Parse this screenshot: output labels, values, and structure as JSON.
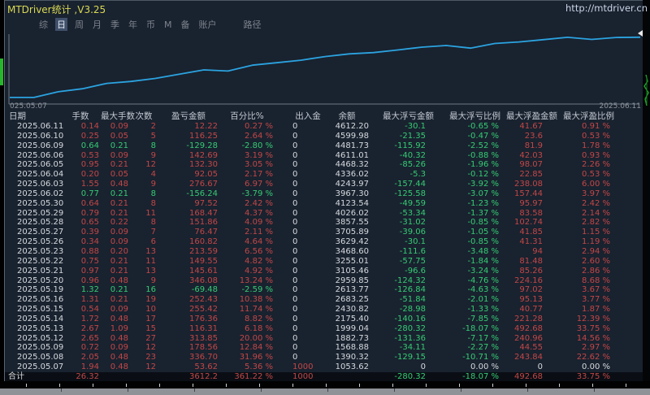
{
  "window": {
    "title": "MTDriver统计 ,V3.25",
    "url": "http://mtdriver.cn"
  },
  "menu": {
    "items": [
      {
        "label": "综",
        "name": "summary",
        "selected": false
      },
      {
        "label": "日",
        "name": "day",
        "selected": true
      },
      {
        "label": "周",
        "name": "week",
        "selected": false
      },
      {
        "label": "月",
        "name": "month",
        "selected": false
      },
      {
        "label": "季",
        "name": "quarter",
        "selected": false
      },
      {
        "label": "年",
        "name": "year",
        "selected": false
      },
      {
        "label": "币",
        "name": "symbol",
        "selected": false
      },
      {
        "label": "M",
        "name": "magic",
        "selected": false
      },
      {
        "label": "备",
        "name": "note",
        "selected": false
      },
      {
        "label": "账户",
        "name": "account",
        "selected": false
      }
    ],
    "path_label": "路径"
  },
  "colors": {
    "panel_bg": "#19222f",
    "up_red": "#c24747",
    "down_green": "#35cc74",
    "text": "#d6dade",
    "header": "#c3cad3",
    "muted": "#8d949c",
    "accent_line": "#2ba3e0",
    "title_yellow": "#d9d952",
    "menu": "#7d848e",
    "selected_bg": "#40506a"
  },
  "chart_data": {
    "type": "line",
    "title": "",
    "xlabel": "",
    "ylabel": "",
    "x_start_label": "025.05.07",
    "x_end_label": "2025.06.11",
    "line_color": "#2ba3e0",
    "ylim": [
      1000,
      4700
    ],
    "x": [
      "2025.05.07",
      "2025.05.08",
      "2025.05.09",
      "2025.05.12",
      "2025.05.13",
      "2025.05.14",
      "2025.05.15",
      "2025.05.16",
      "2025.05.19",
      "2025.05.20",
      "2025.05.21",
      "2025.05.22",
      "2025.05.23",
      "2025.05.26",
      "2025.05.27",
      "2025.05.28",
      "2025.05.29",
      "2025.05.30",
      "2025.06.02",
      "2025.06.03",
      "2025.06.04",
      "2025.06.05",
      "2025.06.06",
      "2025.06.09",
      "2025.06.10",
      "2025.06.11"
    ],
    "values": [
      1053.62,
      1390.32,
      1568.88,
      1882.73,
      1999.04,
      2175.4,
      2430.82,
      2683.25,
      2613.77,
      2959.85,
      3105.46,
      3255.01,
      3468.6,
      3629.42,
      3705.89,
      3857.55,
      4026.02,
      4123.54,
      3967.3,
      4243.97,
      4336.02,
      4468.32,
      4611.01,
      4481.73,
      4599.98,
      4612.2
    ]
  },
  "table": {
    "columns": [
      "日期",
      "手数",
      "最大手数",
      "次数",
      "盈亏金额",
      "百分比%",
      "出入金",
      "余额",
      "最大浮亏金额",
      "最大浮亏比例",
      "最大浮盈金额",
      "最大浮盈比例"
    ],
    "rows": [
      {
        "date": "2025.06.11",
        "lots": "0.14",
        "max_lots": "0.09",
        "count": "2",
        "pl": "12.22",
        "pl_pct": "0.27 %",
        "in_out": "0",
        "balance": "4612.20",
        "max_float_loss": "-30.1",
        "max_float_loss_pct": "-0.65 %",
        "max_float_profit": "41.67",
        "max_float_profit_pct": "0.91 %",
        "trend": "up"
      },
      {
        "date": "2025.06.10",
        "lots": "0.25",
        "max_lots": "0.05",
        "count": "5",
        "pl": "116.25",
        "pl_pct": "2.64 %",
        "in_out": "0",
        "balance": "4599.98",
        "max_float_loss": "-21.35",
        "max_float_loss_pct": "-0.47 %",
        "max_float_profit": "23.6",
        "max_float_profit_pct": "0.53 %",
        "trend": "up"
      },
      {
        "date": "2025.06.09",
        "lots": "0.64",
        "max_lots": "0.21",
        "count": "8",
        "pl": "-129.28",
        "pl_pct": "-2.80 %",
        "in_out": "0",
        "balance": "4481.73",
        "max_float_loss": "-115.92",
        "max_float_loss_pct": "-2.52 %",
        "max_float_profit": "81.9",
        "max_float_profit_pct": "1.78 %",
        "trend": "down"
      },
      {
        "date": "2025.06.06",
        "lots": "0.53",
        "max_lots": "0.09",
        "count": "9",
        "pl": "142.69",
        "pl_pct": "3.19 %",
        "in_out": "0",
        "balance": "4611.01",
        "max_float_loss": "-40.32",
        "max_float_loss_pct": "-0.88 %",
        "max_float_profit": "42.03",
        "max_float_profit_pct": "0.93 %",
        "trend": "up"
      },
      {
        "date": "2025.06.05",
        "lots": "0.95",
        "max_lots": "0.21",
        "count": "12",
        "pl": "132.30",
        "pl_pct": "3.05 %",
        "in_out": "0",
        "balance": "4468.32",
        "max_float_loss": "-85.26",
        "max_float_loss_pct": "-1.96 %",
        "max_float_profit": "98.07",
        "max_float_profit_pct": "2.26 %",
        "trend": "up"
      },
      {
        "date": "2025.06.04",
        "lots": "0.20",
        "max_lots": "0.05",
        "count": "4",
        "pl": "92.05",
        "pl_pct": "2.17 %",
        "in_out": "0",
        "balance": "4336.02",
        "max_float_loss": "-5.3",
        "max_float_loss_pct": "-0.12 %",
        "max_float_profit": "22.85",
        "max_float_profit_pct": "0.53 %",
        "trend": "up"
      },
      {
        "date": "2025.06.03",
        "lots": "1.55",
        "max_lots": "0.48",
        "count": "9",
        "pl": "276.67",
        "pl_pct": "6.97 %",
        "in_out": "0",
        "balance": "4243.97",
        "max_float_loss": "-157.44",
        "max_float_loss_pct": "-3.92 %",
        "max_float_profit": "238.08",
        "max_float_profit_pct": "6.00 %",
        "trend": "up"
      },
      {
        "date": "2025.06.02",
        "lots": "0.77",
        "max_lots": "0.21",
        "count": "8",
        "pl": "-156.24",
        "pl_pct": "-3.79 %",
        "in_out": "0",
        "balance": "3967.30",
        "max_float_loss": "-125.58",
        "max_float_loss_pct": "-3.07 %",
        "max_float_profit": "157.44",
        "max_float_profit_pct": "3.97 %",
        "trend": "down"
      },
      {
        "date": "2025.05.30",
        "lots": "0.64",
        "max_lots": "0.21",
        "count": "8",
        "pl": "97.52",
        "pl_pct": "2.42 %",
        "in_out": "0",
        "balance": "4123.54",
        "max_float_loss": "-49.59",
        "max_float_loss_pct": "-1.23 %",
        "max_float_profit": "95.97",
        "max_float_profit_pct": "2.42 %",
        "trend": "up"
      },
      {
        "date": "2025.05.29",
        "lots": "0.79",
        "max_lots": "0.21",
        "count": "11",
        "pl": "168.47",
        "pl_pct": "4.37 %",
        "in_out": "0",
        "balance": "4026.02",
        "max_float_loss": "-53.34",
        "max_float_loss_pct": "-1.37 %",
        "max_float_profit": "83.58",
        "max_float_profit_pct": "2.14 %",
        "trend": "up"
      },
      {
        "date": "2025.05.28",
        "lots": "0.65",
        "max_lots": "0.22",
        "count": "8",
        "pl": "151.86",
        "pl_pct": "4.09 %",
        "in_out": "0",
        "balance": "3857.55",
        "max_float_loss": "-31.02",
        "max_float_loss_pct": "-0.85 %",
        "max_float_profit": "102.74",
        "max_float_profit_pct": "2.82 %",
        "trend": "up"
      },
      {
        "date": "2025.05.27",
        "lots": "0.39",
        "max_lots": "0.09",
        "count": "7",
        "pl": "76.47",
        "pl_pct": "2.11 %",
        "in_out": "0",
        "balance": "3705.89",
        "max_float_loss": "-39.06",
        "max_float_loss_pct": "-1.05 %",
        "max_float_profit": "41.85",
        "max_float_profit_pct": "1.15 %",
        "trend": "up"
      },
      {
        "date": "2025.05.26",
        "lots": "0.34",
        "max_lots": "0.09",
        "count": "6",
        "pl": "160.82",
        "pl_pct": "4.64 %",
        "in_out": "0",
        "balance": "3629.42",
        "max_float_loss": "-30.1",
        "max_float_loss_pct": "-0.85 %",
        "max_float_profit": "41.31",
        "max_float_profit_pct": "1.19 %",
        "trend": "up"
      },
      {
        "date": "2025.05.23",
        "lots": "0.88",
        "max_lots": "0.20",
        "count": "13",
        "pl": "213.59",
        "pl_pct": "6.56 %",
        "in_out": "0",
        "balance": "3468.60",
        "max_float_loss": "-111.6",
        "max_float_loss_pct": "-3.48 %",
        "max_float_profit": "94",
        "max_float_profit_pct": "2.94 %",
        "trend": "up"
      },
      {
        "date": "2025.05.22",
        "lots": "0.75",
        "max_lots": "0.21",
        "count": "11",
        "pl": "149.55",
        "pl_pct": "4.82 %",
        "in_out": "0",
        "balance": "3255.01",
        "max_float_loss": "-57.75",
        "max_float_loss_pct": "-1.84 %",
        "max_float_profit": "81.48",
        "max_float_profit_pct": "2.60 %",
        "trend": "up"
      },
      {
        "date": "2025.05.21",
        "lots": "0.97",
        "max_lots": "0.21",
        "count": "13",
        "pl": "145.61",
        "pl_pct": "4.92 %",
        "in_out": "0",
        "balance": "3105.46",
        "max_float_loss": "-96.6",
        "max_float_loss_pct": "-3.24 %",
        "max_float_profit": "85.26",
        "max_float_profit_pct": "2.86 %",
        "trend": "up"
      },
      {
        "date": "2025.05.20",
        "lots": "0.96",
        "max_lots": "0.48",
        "count": "9",
        "pl": "346.08",
        "pl_pct": "13.24 %",
        "in_out": "0",
        "balance": "2959.85",
        "max_float_loss": "-124.32",
        "max_float_loss_pct": "-4.76 %",
        "max_float_profit": "224.16",
        "max_float_profit_pct": "8.68 %",
        "trend": "up"
      },
      {
        "date": "2025.05.19",
        "lots": "1.32",
        "max_lots": "0.21",
        "count": "16",
        "pl": "-69.48",
        "pl_pct": "-2.59 %",
        "in_out": "0",
        "balance": "2613.77",
        "max_float_loss": "-126.84",
        "max_float_loss_pct": "-4.63 %",
        "max_float_profit": "97.02",
        "max_float_profit_pct": "3.67 %",
        "trend": "down"
      },
      {
        "date": "2025.05.16",
        "lots": "1.31",
        "max_lots": "0.21",
        "count": "19",
        "pl": "252.43",
        "pl_pct": "10.38 %",
        "in_out": "0",
        "balance": "2683.25",
        "max_float_loss": "-51.84",
        "max_float_loss_pct": "-2.01 %",
        "max_float_profit": "95.13",
        "max_float_profit_pct": "3.77 %",
        "trend": "up"
      },
      {
        "date": "2025.05.15",
        "lots": "0.54",
        "max_lots": "0.09",
        "count": "10",
        "pl": "255.42",
        "pl_pct": "11.74 %",
        "in_out": "0",
        "balance": "2430.82",
        "max_float_loss": "-28.98",
        "max_float_loss_pct": "-1.33 %",
        "max_float_profit": "40.77",
        "max_float_profit_pct": "1.87 %",
        "trend": "up"
      },
      {
        "date": "2025.05.14",
        "lots": "1.72",
        "max_lots": "0.48",
        "count": "17",
        "pl": "176.36",
        "pl_pct": "8.82 %",
        "in_out": "0",
        "balance": "2175.40",
        "max_float_loss": "-140.16",
        "max_float_loss_pct": "-7.85 %",
        "max_float_profit": "221.28",
        "max_float_profit_pct": "12.39 %",
        "trend": "up"
      },
      {
        "date": "2025.05.13",
        "lots": "2.67",
        "max_lots": "1.09",
        "count": "15",
        "pl": "116.31",
        "pl_pct": "6.18 %",
        "in_out": "0",
        "balance": "1999.04",
        "max_float_loss": "-280.32",
        "max_float_loss_pct": "-18.07 %",
        "max_float_profit": "492.68",
        "max_float_profit_pct": "33.75 %",
        "trend": "up"
      },
      {
        "date": "2025.05.12",
        "lots": "2.65",
        "max_lots": "0.48",
        "count": "27",
        "pl": "313.85",
        "pl_pct": "20.00 %",
        "in_out": "0",
        "balance": "1882.73",
        "max_float_loss": "-131.36",
        "max_float_loss_pct": "-7.17 %",
        "max_float_profit": "240.96",
        "max_float_profit_pct": "14.56 %",
        "trend": "up"
      },
      {
        "date": "2025.05.09",
        "lots": "0.72",
        "max_lots": "0.09",
        "count": "12",
        "pl": "178.56",
        "pl_pct": "12.84 %",
        "in_out": "0",
        "balance": "1568.88",
        "max_float_loss": "-34.11",
        "max_float_loss_pct": "-2.27 %",
        "max_float_profit": "44.55",
        "max_float_profit_pct": "2.97 %",
        "trend": "up"
      },
      {
        "date": "2025.05.08",
        "lots": "2.05",
        "max_lots": "0.48",
        "count": "23",
        "pl": "336.70",
        "pl_pct": "31.96 %",
        "in_out": "0",
        "balance": "1390.32",
        "max_float_loss": "-129.15",
        "max_float_loss_pct": "-10.71 %",
        "max_float_profit": "243.84",
        "max_float_profit_pct": "22.62 %",
        "trend": "up"
      },
      {
        "date": "2025.05.07",
        "lots": "1.94",
        "max_lots": "0.48",
        "count": "12",
        "pl": "53.62",
        "pl_pct": "5.36 %",
        "in_out": "1000",
        "balance": "1053.62",
        "max_float_loss": "0",
        "max_float_loss_pct": "0.00 %",
        "max_float_profit": "0",
        "max_float_profit_pct": "0.00 %",
        "trend": "up"
      }
    ],
    "total_label": "合计",
    "total": {
      "lots": "26.32",
      "max_lots": "",
      "count": "",
      "pl": "3612.2",
      "pl_pct": "361.22 %",
      "in_out": "1000",
      "balance": "",
      "max_float_loss": "-280.32",
      "max_float_loss_pct": "-18.07 %",
      "max_float_profit": "492.68",
      "max_float_profit_pct": "33.75 %",
      "trend": "up"
    }
  }
}
